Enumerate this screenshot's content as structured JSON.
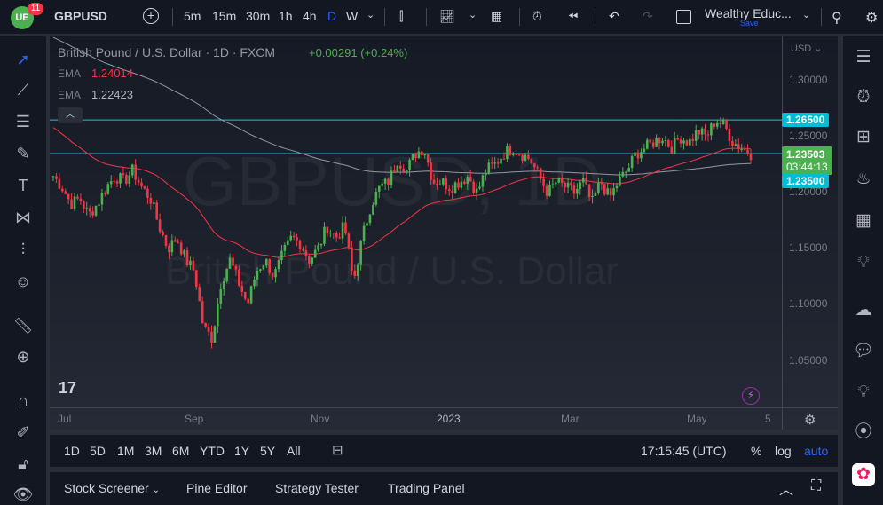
{
  "topbar": {
    "logo_badge": "11",
    "symbol": "GBPUSD",
    "intervals": [
      "5m",
      "15m",
      "30m",
      "1h",
      "4h",
      "D",
      "W"
    ],
    "active_interval": "D",
    "layout_name": "Wealthy Educ...",
    "save_label": "Save"
  },
  "legend": {
    "title": "British Pound / U.S. Dollar · 1D · FXCM",
    "change": "+0.00291 (+0.24%)",
    "ema1_label": "EMA",
    "ema1_value": "1.24014",
    "ema2_label": "EMA",
    "ema2_value": "1.22423"
  },
  "watermark": {
    "symbol": "GBPUSD, 1D",
    "name": "British Pound / U.S. Dollar"
  },
  "price_axis": {
    "currency": "USD",
    "ticks": [
      "1.30000",
      "1.25000",
      "1.20000",
      "1.15000",
      "1.10000",
      "1.05000"
    ],
    "hline_top": "1.26500",
    "hline_bottom": "1.23500",
    "last_price": "1.23503",
    "countdown": "03:44:13"
  },
  "time_axis": [
    "Jul",
    "Sep",
    "Nov",
    "2023",
    "Mar",
    "May",
    "5"
  ],
  "bottombar": {
    "ranges": [
      "1D",
      "5D",
      "1M",
      "3M",
      "6M",
      "YTD",
      "1Y",
      "5Y",
      "All"
    ],
    "clock": "17:15:45 (UTC)",
    "percent": "%",
    "log": "log",
    "auto": "auto"
  },
  "panels": [
    "Stock Screener",
    "Pine Editor",
    "Strategy Tester",
    "Trading Panel"
  ],
  "colors": {
    "up": "#4caf50",
    "down": "#f23645",
    "ema_fast": "#f23645",
    "ema_slow": "#9598a1",
    "hline": "#22c1d6",
    "accent": "#2962ff"
  },
  "chart_data": {
    "type": "candlestick",
    "ylim": [
      1.03,
      1.31
    ],
    "hlines": [
      1.265,
      1.235
    ],
    "ema_periods": [
      50,
      200
    ],
    "closes": [
      1.215,
      1.205,
      1.19,
      1.195,
      1.18,
      1.19,
      1.205,
      1.215,
      1.21,
      1.22,
      1.205,
      1.195,
      1.17,
      1.15,
      1.16,
      1.14,
      1.13,
      1.08,
      1.07,
      1.12,
      1.14,
      1.12,
      1.1,
      1.13,
      1.14,
      1.125,
      1.145,
      1.16,
      1.155,
      1.14,
      1.15,
      1.17,
      1.16,
      1.17,
      1.12,
      1.16,
      1.19,
      1.205,
      1.21,
      1.23,
      1.22,
      1.235,
      1.24,
      1.21,
      1.21,
      1.205,
      1.21,
      1.215,
      1.2,
      1.22,
      1.225,
      1.235,
      1.24,
      1.235,
      1.23,
      1.215,
      1.2,
      1.21,
      1.205,
      1.2,
      1.21,
      1.19,
      1.21,
      1.195,
      1.21,
      1.22,
      1.235,
      1.24,
      1.245,
      1.25,
      1.24,
      1.25,
      1.245,
      1.255,
      1.25,
      1.265,
      1.26,
      1.245,
      1.24,
      1.235
    ]
  }
}
